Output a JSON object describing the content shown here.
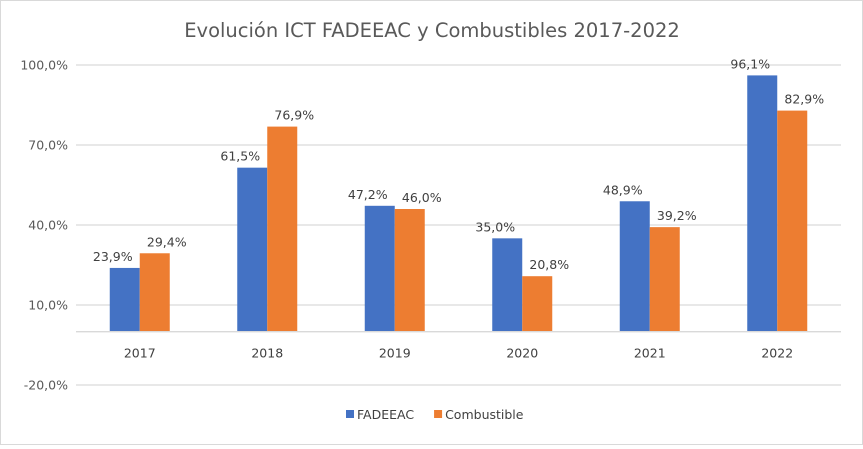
{
  "chart_data": {
    "type": "bar",
    "title": "Evolución ICT FADEEAC y Combustibles 2017-2022",
    "xlabel": "",
    "ylabel": "",
    "categories": [
      "2017",
      "2018",
      "2019",
      "2020",
      "2021",
      "2022"
    ],
    "series": [
      {
        "name": "FADEEAC",
        "color": "#4472C4",
        "values": [
          23.9,
          61.5,
          47.2,
          35.0,
          48.9,
          96.1
        ],
        "labels": [
          "23,9%",
          "61,5%",
          "47,2%",
          "35,0%",
          "48,9%",
          "96,1%"
        ]
      },
      {
        "name": "Combustible",
        "color": "#ED7D31",
        "values": [
          29.4,
          76.9,
          46.0,
          20.8,
          39.2,
          82.9
        ],
        "labels": [
          "29,4%",
          "76,9%",
          "46,0%",
          "20,8%",
          "39,2%",
          "82,9%"
        ]
      }
    ],
    "ylim": [
      -20,
      100
    ],
    "yticks": [
      100,
      70,
      40,
      10,
      -20
    ],
    "ytick_labels": [
      "100,0%",
      "70,0%",
      "40,0%",
      "10,0%",
      "-20,0%"
    ],
    "category_axis_crosses_at": 0,
    "grid": true,
    "legend": "bottom"
  }
}
